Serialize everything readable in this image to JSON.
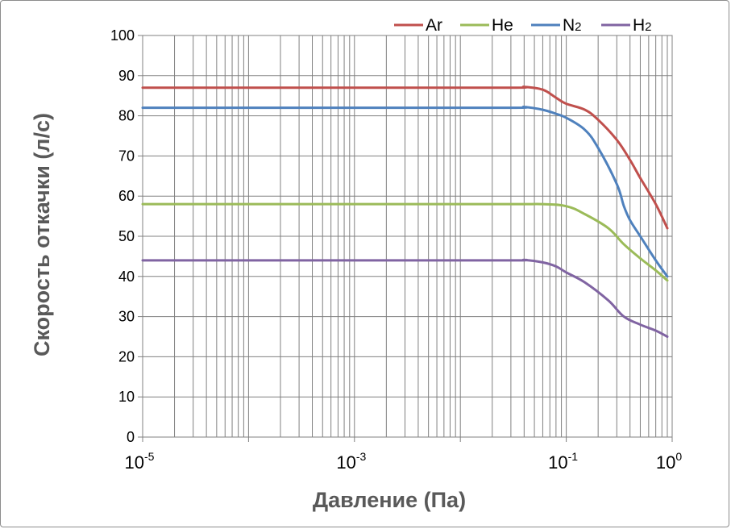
{
  "chart_data": {
    "type": "line",
    "xscale": "log",
    "xlim": [
      1e-05,
      1
    ],
    "ylim": [
      0,
      100
    ],
    "grid": true,
    "legend_position": "top-right",
    "xlabel": "Давление (Па)",
    "ylabel": "Скорость откачки (л/с)",
    "yticks": [
      "0",
      "10",
      "20",
      "30",
      "40",
      "50",
      "60",
      "70",
      "80",
      "90",
      "100"
    ],
    "xticks": [
      {
        "base": "10",
        "exp": "-5",
        "value": 1e-05
      },
      {
        "base": "10",
        "exp": "-3",
        "value": 0.001
      },
      {
        "base": "10",
        "exp": "-1",
        "value": 0.1
      },
      {
        "base": "10",
        "exp": "0",
        "value": 1
      }
    ],
    "series": [
      {
        "name": "Ar",
        "main": "Ar",
        "sub": "",
        "color": "#c0504d",
        "x": [
          1e-05,
          0.001,
          0.03,
          0.04,
          0.06,
          0.08,
          0.1,
          0.15,
          0.2,
          0.3,
          0.4,
          0.5,
          0.7,
          0.9
        ],
        "y": [
          87,
          87,
          87,
          87.2,
          86.5,
          84.5,
          83,
          81.5,
          79,
          74,
          69,
          64.5,
          58,
          52
        ]
      },
      {
        "name": "He",
        "main": "He",
        "sub": "",
        "color": "#9bbb59",
        "x": [
          1e-05,
          0.001,
          0.03,
          0.06,
          0.1,
          0.15,
          0.25,
          0.35,
          0.5,
          0.7,
          0.9
        ],
        "y": [
          58,
          58,
          58,
          58,
          57.5,
          55.5,
          52,
          48,
          44.5,
          41.5,
          39
        ]
      },
      {
        "name": "N2",
        "main": "N",
        "sub": "2",
        "color": "#4f81bd",
        "x": [
          1e-05,
          0.001,
          0.03,
          0.04,
          0.06,
          0.08,
          0.1,
          0.15,
          0.2,
          0.3,
          0.35,
          0.4,
          0.5,
          0.7,
          0.9
        ],
        "y": [
          82,
          82,
          82,
          82.2,
          81.5,
          80.5,
          79.5,
          76.5,
          72,
          63,
          57.5,
          54,
          50,
          44,
          40
        ]
      },
      {
        "name": "H2",
        "main": "H",
        "sub": "2",
        "color": "#8064a2",
        "x": [
          1e-05,
          0.001,
          0.03,
          0.04,
          0.06,
          0.08,
          0.1,
          0.15,
          0.25,
          0.35,
          0.5,
          0.7,
          0.9
        ],
        "y": [
          44,
          44,
          44,
          44.1,
          43.5,
          42.5,
          41,
          38.5,
          34,
          30,
          28,
          26.5,
          25
        ]
      }
    ]
  }
}
